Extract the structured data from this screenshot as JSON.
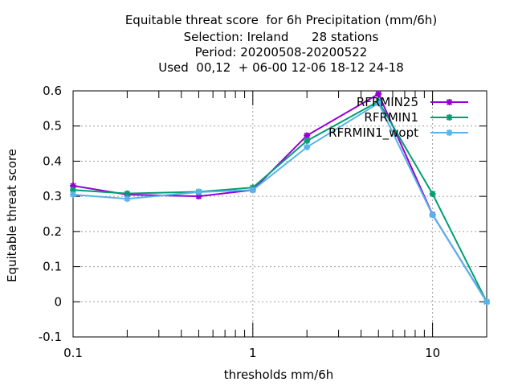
{
  "chart_data": {
    "type": "line",
    "title_lines": [
      "Equitable threat score  for 6h Precipitation (mm/6h)",
      "Selection: Ireland      28 stations",
      "Period: 20200508-20200522",
      "Used  00,12  + 06-00 12-06 18-12 24-18"
    ],
    "xlabel": "thresholds mm/6h",
    "ylabel": "Equitable threat score",
    "x_scale": "log",
    "xlim": [
      0.1,
      20
    ],
    "ylim": [
      -0.1,
      0.6
    ],
    "x_ticks": [
      0.1,
      1,
      10
    ],
    "x_tick_labels": [
      "0.1",
      "1",
      "10"
    ],
    "y_ticks": [
      -0.1,
      0,
      0.1,
      0.2,
      0.3,
      0.4,
      0.5,
      0.6
    ],
    "y_tick_labels": [
      "-0.1",
      "0",
      "0.1",
      "0.2",
      "0.3",
      "0.4",
      "0.5",
      "0.6"
    ],
    "grid": true,
    "legend_position": "top-right",
    "x": [
      0.1,
      0.2,
      0.5,
      1,
      2,
      5,
      10,
      20
    ],
    "series": [
      {
        "name": "RFRMIN25",
        "color": "#9400d3",
        "marker": "star",
        "values": [
          0.33,
          0.305,
          0.3,
          0.318,
          0.473,
          0.591,
          0.248,
          0.0
        ]
      },
      {
        "name": "RFRMIN1",
        "color": "#009e73",
        "marker": "star",
        "values": [
          0.318,
          0.308,
          0.313,
          0.325,
          0.458,
          0.57,
          0.307,
          0.0
        ]
      },
      {
        "name": "RFRMIN1_wopt",
        "color": "#56b4e9",
        "marker": "star",
        "values": [
          0.305,
          0.293,
          0.312,
          0.318,
          0.44,
          0.565,
          0.247,
          0.0
        ]
      }
    ]
  }
}
